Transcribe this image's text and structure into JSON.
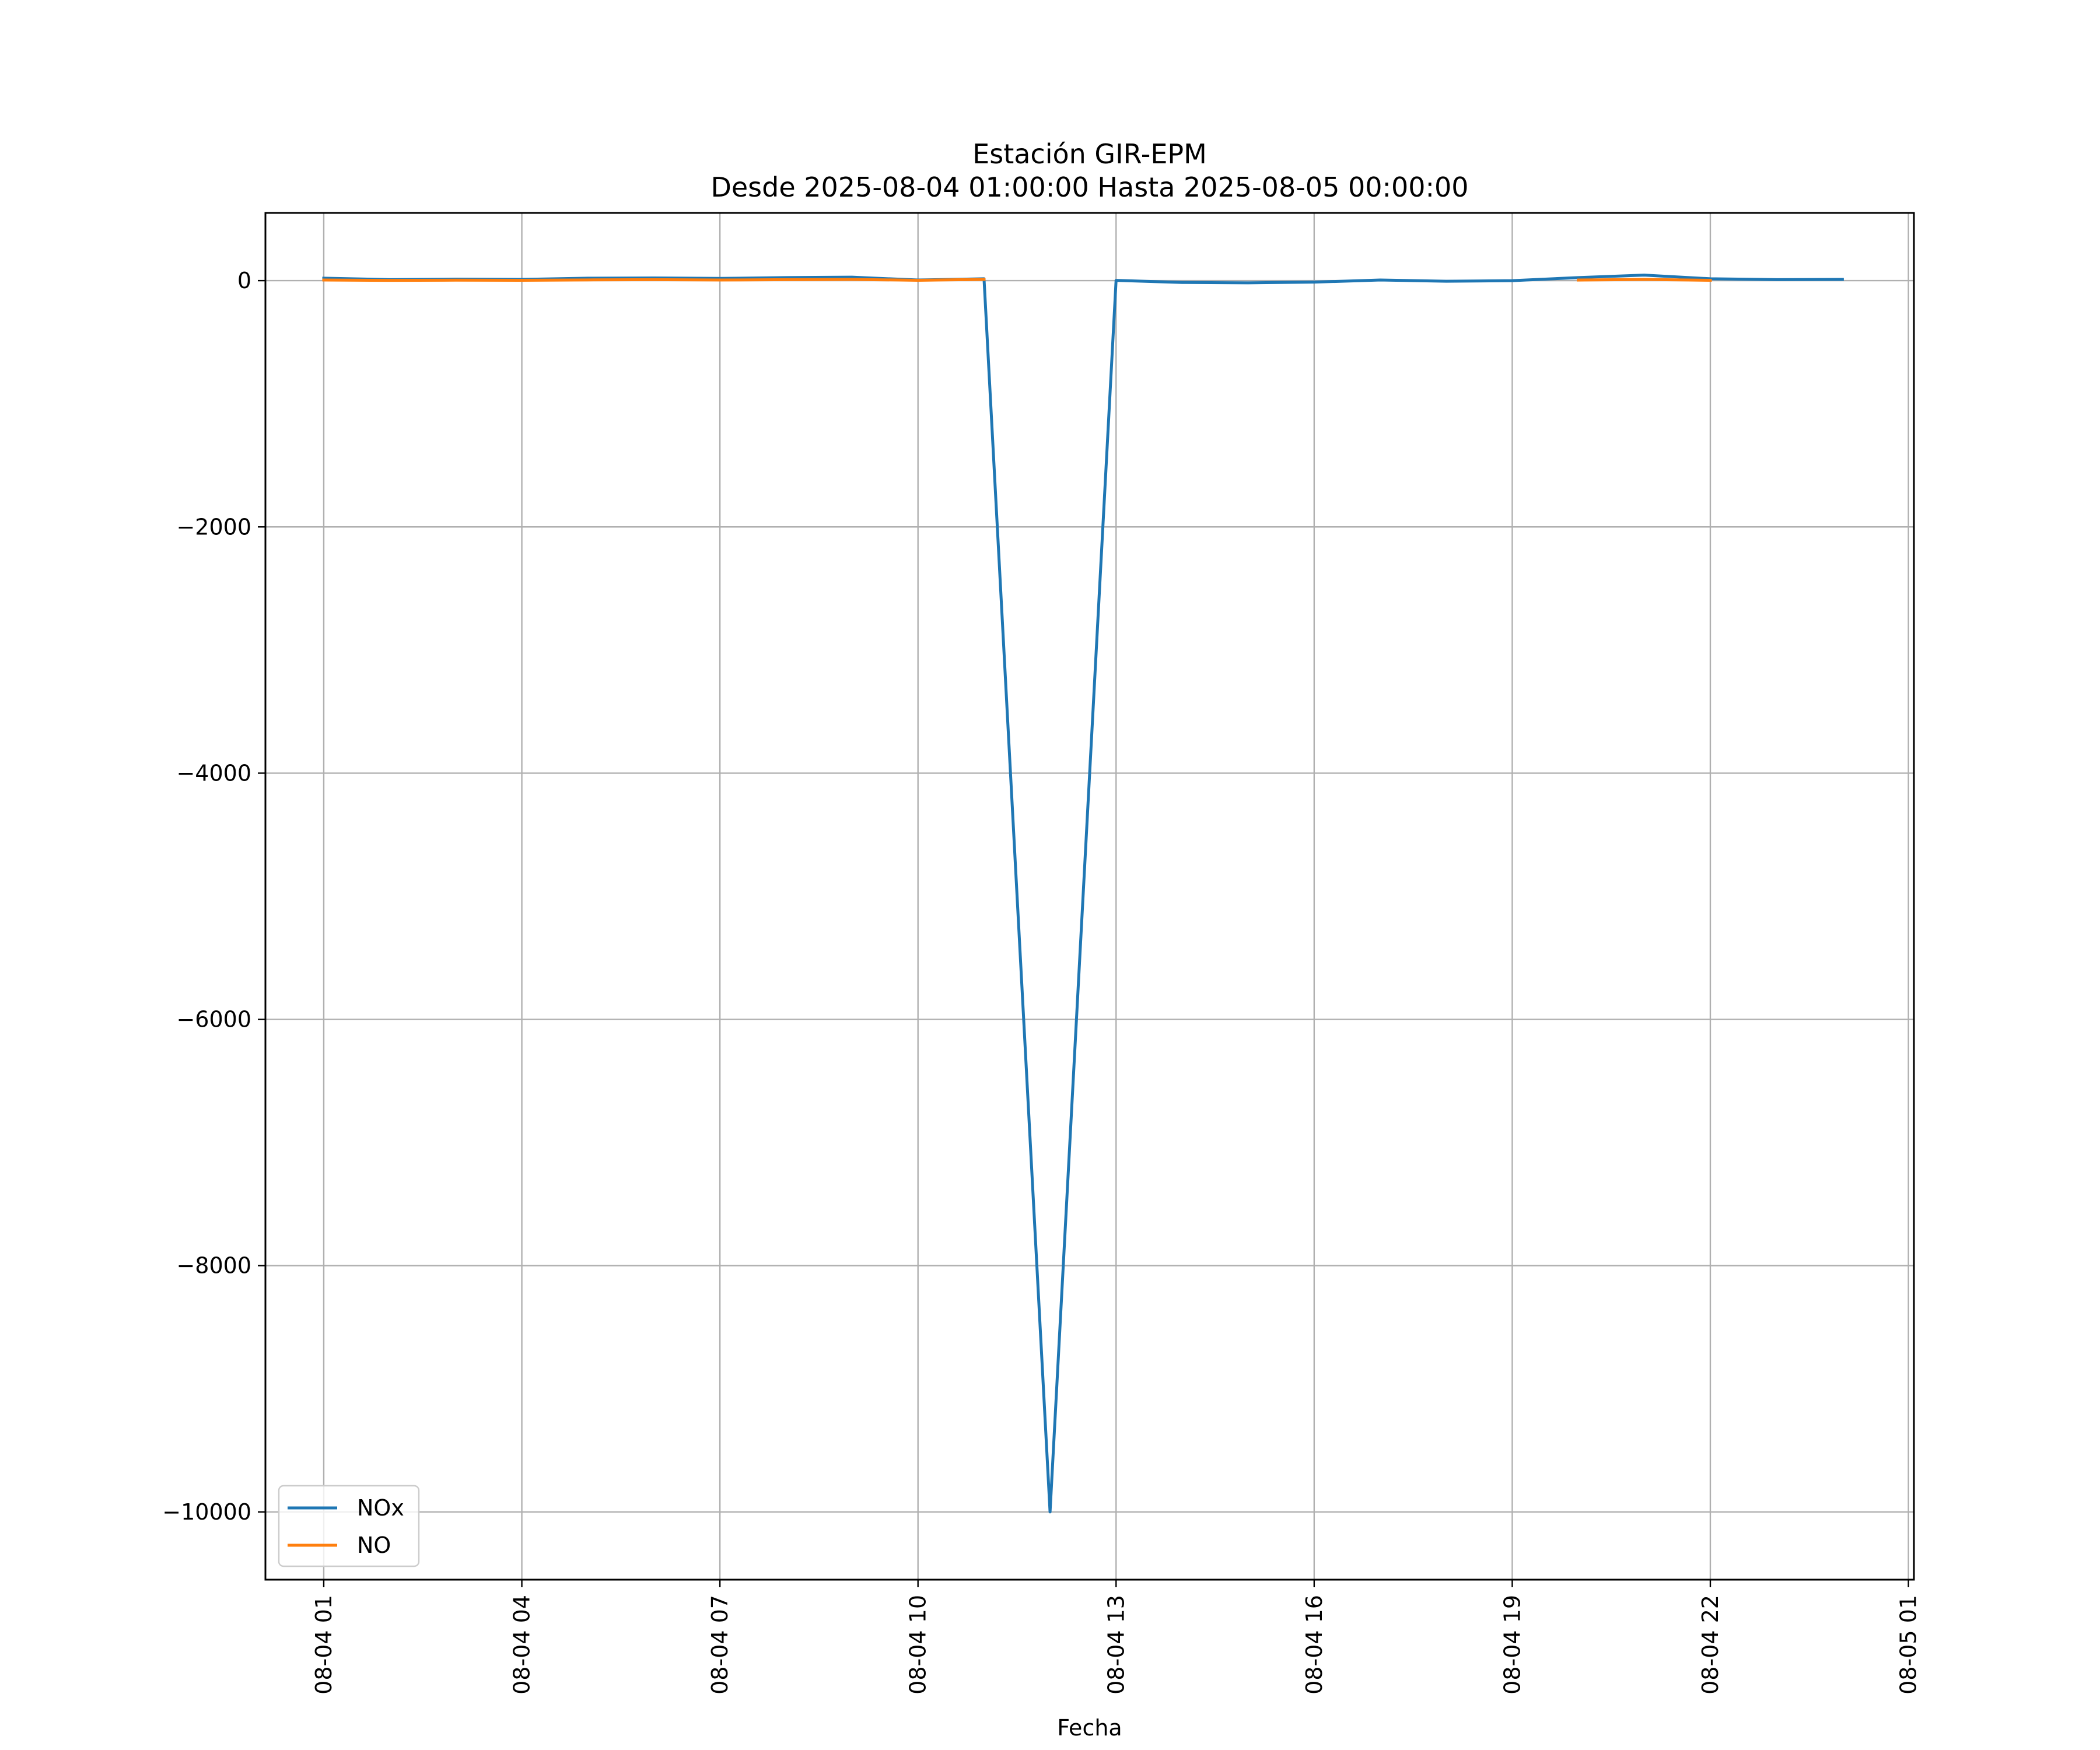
{
  "chart_data": {
    "type": "line",
    "title": "Estación GIR-EPM",
    "subtitle": "Desde 2025-08-04 01:00:00 Hasta 2025-08-05 00:00:00",
    "xlabel": "Fecha",
    "ylabel": "",
    "x_ticks": [
      "08-04 01",
      "08-04 04",
      "08-04 07",
      "08-04 10",
      "08-04 13",
      "08-04 16",
      "08-04 19",
      "08-04 22",
      "08-05 01"
    ],
    "y_ticks": [
      "0",
      "−2000",
      "−4000",
      "−6000",
      "−8000",
      "−10000"
    ],
    "x": [
      "2025-08-04 01:00",
      "2025-08-04 02:00",
      "2025-08-04 03:00",
      "2025-08-04 04:00",
      "2025-08-04 05:00",
      "2025-08-04 06:00",
      "2025-08-04 07:00",
      "2025-08-04 08:00",
      "2025-08-04 09:00",
      "2025-08-04 10:00",
      "2025-08-04 11:00",
      "2025-08-04 12:00",
      "2025-08-04 13:00",
      "2025-08-04 14:00",
      "2025-08-04 15:00",
      "2025-08-04 16:00",
      "2025-08-04 17:00",
      "2025-08-04 18:00",
      "2025-08-04 19:00",
      "2025-08-04 20:00",
      "2025-08-04 21:00",
      "2025-08-04 22:00",
      "2025-08-04 23:00",
      "2025-08-05 00:00"
    ],
    "series": [
      {
        "name": "NOx",
        "color": "#1f77b4",
        "values": [
          20,
          8,
          12,
          10,
          20,
          22,
          18,
          25,
          28,
          5,
          15,
          -10000,
          2,
          -15,
          -18,
          -12,
          5,
          -5,
          0,
          25,
          45,
          15,
          8,
          10
        ]
      },
      {
        "name": "NO",
        "color": "#ff7f0e",
        "values": [
          5,
          2,
          4,
          3,
          6,
          8,
          5,
          8,
          10,
          3,
          10,
          null,
          null,
          null,
          null,
          null,
          null,
          null,
          null,
          5,
          10,
          3,
          null,
          null
        ]
      }
    ],
    "ylim": [
      -10550,
      550
    ],
    "xlim": [
      "2025-08-04 00:07",
      "2025-08-05 01:05"
    ],
    "grid": true,
    "legend_position": "lower-left"
  }
}
